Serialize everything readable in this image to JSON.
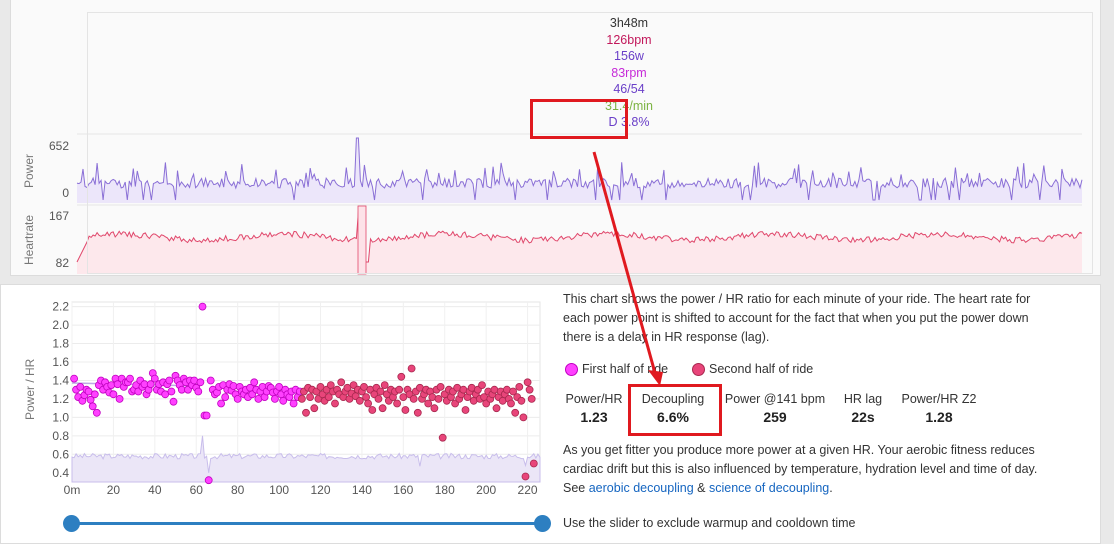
{
  "tooltip": {
    "time": "3h48m",
    "hr": "126bpm",
    "power": "156w",
    "cadence": "83rpm",
    "lr": "46/54",
    "partial": "31.4/min",
    "decoupling": "D 3.8%"
  },
  "top_chart": {
    "power_label": "Power",
    "power_max": "652",
    "power_min": "0",
    "hr_label": "Heartrate",
    "hr_max": "167",
    "hr_min": "82",
    "colors": {
      "power": "#8a6fd6",
      "hr": "#e0476b",
      "tooltip_hr": "#c2185b",
      "tooltip_power": "#6a3fc8",
      "tooltip_cad": "#c62ad8",
      "tooltip_lr": "#6a3fc8"
    }
  },
  "chart_data": {
    "type": "scatter",
    "ylabel": "Power / HR",
    "xlabel": "",
    "x_ticks": [
      "0m",
      "20",
      "40",
      "60",
      "80",
      "100",
      "120",
      "140",
      "160",
      "180",
      "200",
      "220"
    ],
    "y_ticks": [
      "0.4",
      "0.6",
      "0.8",
      "1.0",
      "1.2",
      "1.4",
      "1.6",
      "1.8",
      "2.0",
      "2.2"
    ],
    "xlim": [
      0,
      226
    ],
    "ylim": [
      0.3,
      2.25
    ],
    "grid": true,
    "series": [
      {
        "name": "First half of ride",
        "color": "#ff40ff",
        "points": [
          [
            1,
            1.42
          ],
          [
            2,
            1.3
          ],
          [
            3,
            1.22
          ],
          [
            4,
            1.33
          ],
          [
            5,
            1.18
          ],
          [
            6,
            1.24
          ],
          [
            7,
            1.3
          ],
          [
            8,
            1.28
          ],
          [
            9,
            1.19
          ],
          [
            10,
            1.12
          ],
          [
            11,
            1.25
          ],
          [
            12,
            1.05
          ],
          [
            13,
            1.35
          ],
          [
            14,
            1.4
          ],
          [
            15,
            1.3
          ],
          [
            16,
            1.38
          ],
          [
            17,
            1.33
          ],
          [
            18,
            1.27
          ],
          [
            19,
            1.35
          ],
          [
            20,
            1.25
          ],
          [
            21,
            1.42
          ],
          [
            22,
            1.36
          ],
          [
            23,
            1.2
          ],
          [
            24,
            1.42
          ],
          [
            25,
            1.33
          ],
          [
            26,
            1.38
          ],
          [
            27,
            1.38
          ],
          [
            28,
            1.42
          ],
          [
            29,
            1.28
          ],
          [
            30,
            1.3
          ],
          [
            31,
            1.35
          ],
          [
            32,
            1.28
          ],
          [
            33,
            1.4
          ],
          [
            34,
            1.33
          ],
          [
            35,
            1.36
          ],
          [
            36,
            1.25
          ],
          [
            37,
            1.3
          ],
          [
            38,
            1.36
          ],
          [
            39,
            1.48
          ],
          [
            40,
            1.42
          ],
          [
            41,
            1.3
          ],
          [
            42,
            1.36
          ],
          [
            43,
            1.28
          ],
          [
            44,
            1.38
          ],
          [
            45,
            1.25
          ],
          [
            46,
            1.36
          ],
          [
            47,
            1.4
          ],
          [
            48,
            1.28
          ],
          [
            49,
            1.17
          ],
          [
            50,
            1.45
          ],
          [
            51,
            1.4
          ],
          [
            52,
            1.35
          ],
          [
            53,
            1.3
          ],
          [
            54,
            1.42
          ],
          [
            55,
            1.38
          ],
          [
            56,
            1.3
          ],
          [
            57,
            1.4
          ],
          [
            58,
            1.35
          ],
          [
            59,
            1.4
          ],
          [
            60,
            1.32
          ],
          [
            61,
            1.28
          ],
          [
            62,
            1.38
          ],
          [
            63,
            2.2
          ],
          [
            64,
            1.02
          ],
          [
            65,
            1.02
          ],
          [
            66,
            0.32
          ],
          [
            67,
            1.4
          ],
          [
            68,
            1.3
          ],
          [
            69,
            1.25
          ],
          [
            70,
            1.27
          ],
          [
            71,
            1.33
          ],
          [
            72,
            1.15
          ],
          [
            73,
            1.35
          ],
          [
            74,
            1.22
          ],
          [
            75,
            1.3
          ],
          [
            76,
            1.36
          ],
          [
            77,
            1.29
          ],
          [
            78,
            1.34
          ],
          [
            79,
            1.25
          ],
          [
            80,
            1.2
          ],
          [
            81,
            1.33
          ],
          [
            82,
            1.28
          ],
          [
            83,
            1.25
          ],
          [
            84,
            1.3
          ],
          [
            85,
            1.22
          ],
          [
            86,
            1.32
          ],
          [
            87,
            1.25
          ],
          [
            88,
            1.38
          ],
          [
            89,
            1.3
          ],
          [
            90,
            1.2
          ],
          [
            91,
            1.28
          ],
          [
            92,
            1.33
          ],
          [
            93,
            1.22
          ],
          [
            94,
            1.28
          ],
          [
            95,
            1.34
          ],
          [
            96,
            1.32
          ],
          [
            97,
            1.27
          ],
          [
            98,
            1.2
          ],
          [
            99,
            1.28
          ],
          [
            100,
            1.33
          ],
          [
            101,
            1.25
          ],
          [
            102,
            1.18
          ],
          [
            103,
            1.3
          ],
          [
            104,
            1.25
          ],
          [
            105,
            1.22
          ],
          [
            106,
            1.28
          ],
          [
            107,
            1.15
          ],
          [
            108,
            1.3
          ],
          [
            109,
            1.22
          ],
          [
            110,
            1.28
          ]
        ]
      },
      {
        "name": "Second half of ride",
        "color": "#e8457a",
        "points": [
          [
            111,
            1.2
          ],
          [
            112,
            1.28
          ],
          [
            113,
            1.05
          ],
          [
            114,
            1.32
          ],
          [
            115,
            1.22
          ],
          [
            116,
            1.3
          ],
          [
            117,
            1.1
          ],
          [
            118,
            1.28
          ],
          [
            119,
            1.2
          ],
          [
            120,
            1.33
          ],
          [
            121,
            1.25
          ],
          [
            122,
            1.18
          ],
          [
            123,
            1.3
          ],
          [
            124,
            1.22
          ],
          [
            125,
            1.35
          ],
          [
            126,
            1.28
          ],
          [
            127,
            1.15
          ],
          [
            128,
            1.3
          ],
          [
            129,
            1.25
          ],
          [
            130,
            1.38
          ],
          [
            131,
            1.22
          ],
          [
            132,
            1.28
          ],
          [
            133,
            1.32
          ],
          [
            134,
            1.2
          ],
          [
            135,
            1.26
          ],
          [
            136,
            1.35
          ],
          [
            137,
            1.23
          ],
          [
            138,
            1.3
          ],
          [
            139,
            1.18
          ],
          [
            140,
            1.28
          ],
          [
            141,
            1.33
          ],
          [
            142,
            1.22
          ],
          [
            143,
            1.15
          ],
          [
            144,
            1.3
          ],
          [
            145,
            1.08
          ],
          [
            146,
            1.25
          ],
          [
            147,
            1.32
          ],
          [
            148,
            1.2
          ],
          [
            149,
            1.28
          ],
          [
            150,
            1.1
          ],
          [
            151,
            1.35
          ],
          [
            152,
            1.25
          ],
          [
            153,
            1.18
          ],
          [
            154,
            1.3
          ],
          [
            155,
            1.22
          ],
          [
            156,
            1.28
          ],
          [
            157,
            1.15
          ],
          [
            158,
            1.3
          ],
          [
            159,
            1.44
          ],
          [
            160,
            1.22
          ],
          [
            161,
            1.08
          ],
          [
            162,
            1.3
          ],
          [
            163,
            1.25
          ],
          [
            164,
            1.53
          ],
          [
            165,
            1.2
          ],
          [
            166,
            1.28
          ],
          [
            167,
            1.05
          ],
          [
            168,
            1.32
          ],
          [
            169,
            1.2
          ],
          [
            170,
            1.25
          ],
          [
            171,
            1.3
          ],
          [
            172,
            1.15
          ],
          [
            173,
            1.28
          ],
          [
            174,
            1.22
          ],
          [
            175,
            1.1
          ],
          [
            176,
            1.3
          ],
          [
            177,
            1.2
          ],
          [
            178,
            1.33
          ],
          [
            179,
            0.78
          ],
          [
            180,
            1.25
          ],
          [
            181,
            1.18
          ],
          [
            182,
            1.3
          ],
          [
            183,
            1.22
          ],
          [
            184,
            1.28
          ],
          [
            185,
            1.15
          ],
          [
            186,
            1.32
          ],
          [
            187,
            1.2
          ],
          [
            188,
            1.25
          ],
          [
            189,
            1.3
          ],
          [
            190,
            1.08
          ],
          [
            191,
            1.22
          ],
          [
            192,
            1.28
          ],
          [
            193,
            1.32
          ],
          [
            194,
            1.18
          ],
          [
            195,
            1.25
          ],
          [
            196,
            1.3
          ],
          [
            197,
            1.2
          ],
          [
            198,
            1.35
          ],
          [
            199,
            1.22
          ],
          [
            200,
            1.15
          ],
          [
            201,
            1.28
          ],
          [
            202,
            1.2
          ],
          [
            203,
            1.25
          ],
          [
            204,
            1.3
          ],
          [
            205,
            1.1
          ],
          [
            206,
            1.22
          ],
          [
            207,
            1.28
          ],
          [
            208,
            1.18
          ],
          [
            209,
            1.25
          ],
          [
            210,
            1.3
          ],
          [
            211,
            1.2
          ],
          [
            212,
            1.15
          ],
          [
            213,
            1.28
          ],
          [
            214,
            1.05
          ],
          [
            215,
            1.22
          ],
          [
            216,
            1.33
          ],
          [
            217,
            1.18
          ],
          [
            218,
            1.0
          ],
          [
            219,
            0.36
          ],
          [
            220,
            1.38
          ],
          [
            221,
            1.3
          ],
          [
            222,
            1.2
          ],
          [
            223,
            0.5
          ]
        ]
      }
    ]
  },
  "description": {
    "line1": "This chart shows the power / HR ratio for each minute of your ride. The heart rate for",
    "line2": "each power point is shifted to account for the fact that when you put the power down",
    "line3": "there is a delay in HR response (lag)."
  },
  "legend": {
    "first": "First half of ride",
    "second": "Second half of ride",
    "first_color": "#ff40ff",
    "second_color": "#e8457a"
  },
  "stats": [
    {
      "label": "Power/HR",
      "value": "1.23"
    },
    {
      "label": "Decoupling",
      "value": "6.6%"
    },
    {
      "label": "Power @141 bpm",
      "value": "259"
    },
    {
      "label": "HR lag",
      "value": "22s"
    },
    {
      "label": "Power/HR Z2",
      "value": "1.28"
    }
  ],
  "fitness": {
    "line1": "As you get fitter you produce more power at a given HR. Your aerobic fitness reduces",
    "line2": "cardiac drift but this is also influenced by temperature, hydration level and time of day.",
    "see": "See",
    "link1": "aerobic decoupling",
    "amp": "&",
    "link2": "science of decoupling",
    "period": "."
  },
  "slider_text": "Use the slider to exclude warmup and cooldown time"
}
